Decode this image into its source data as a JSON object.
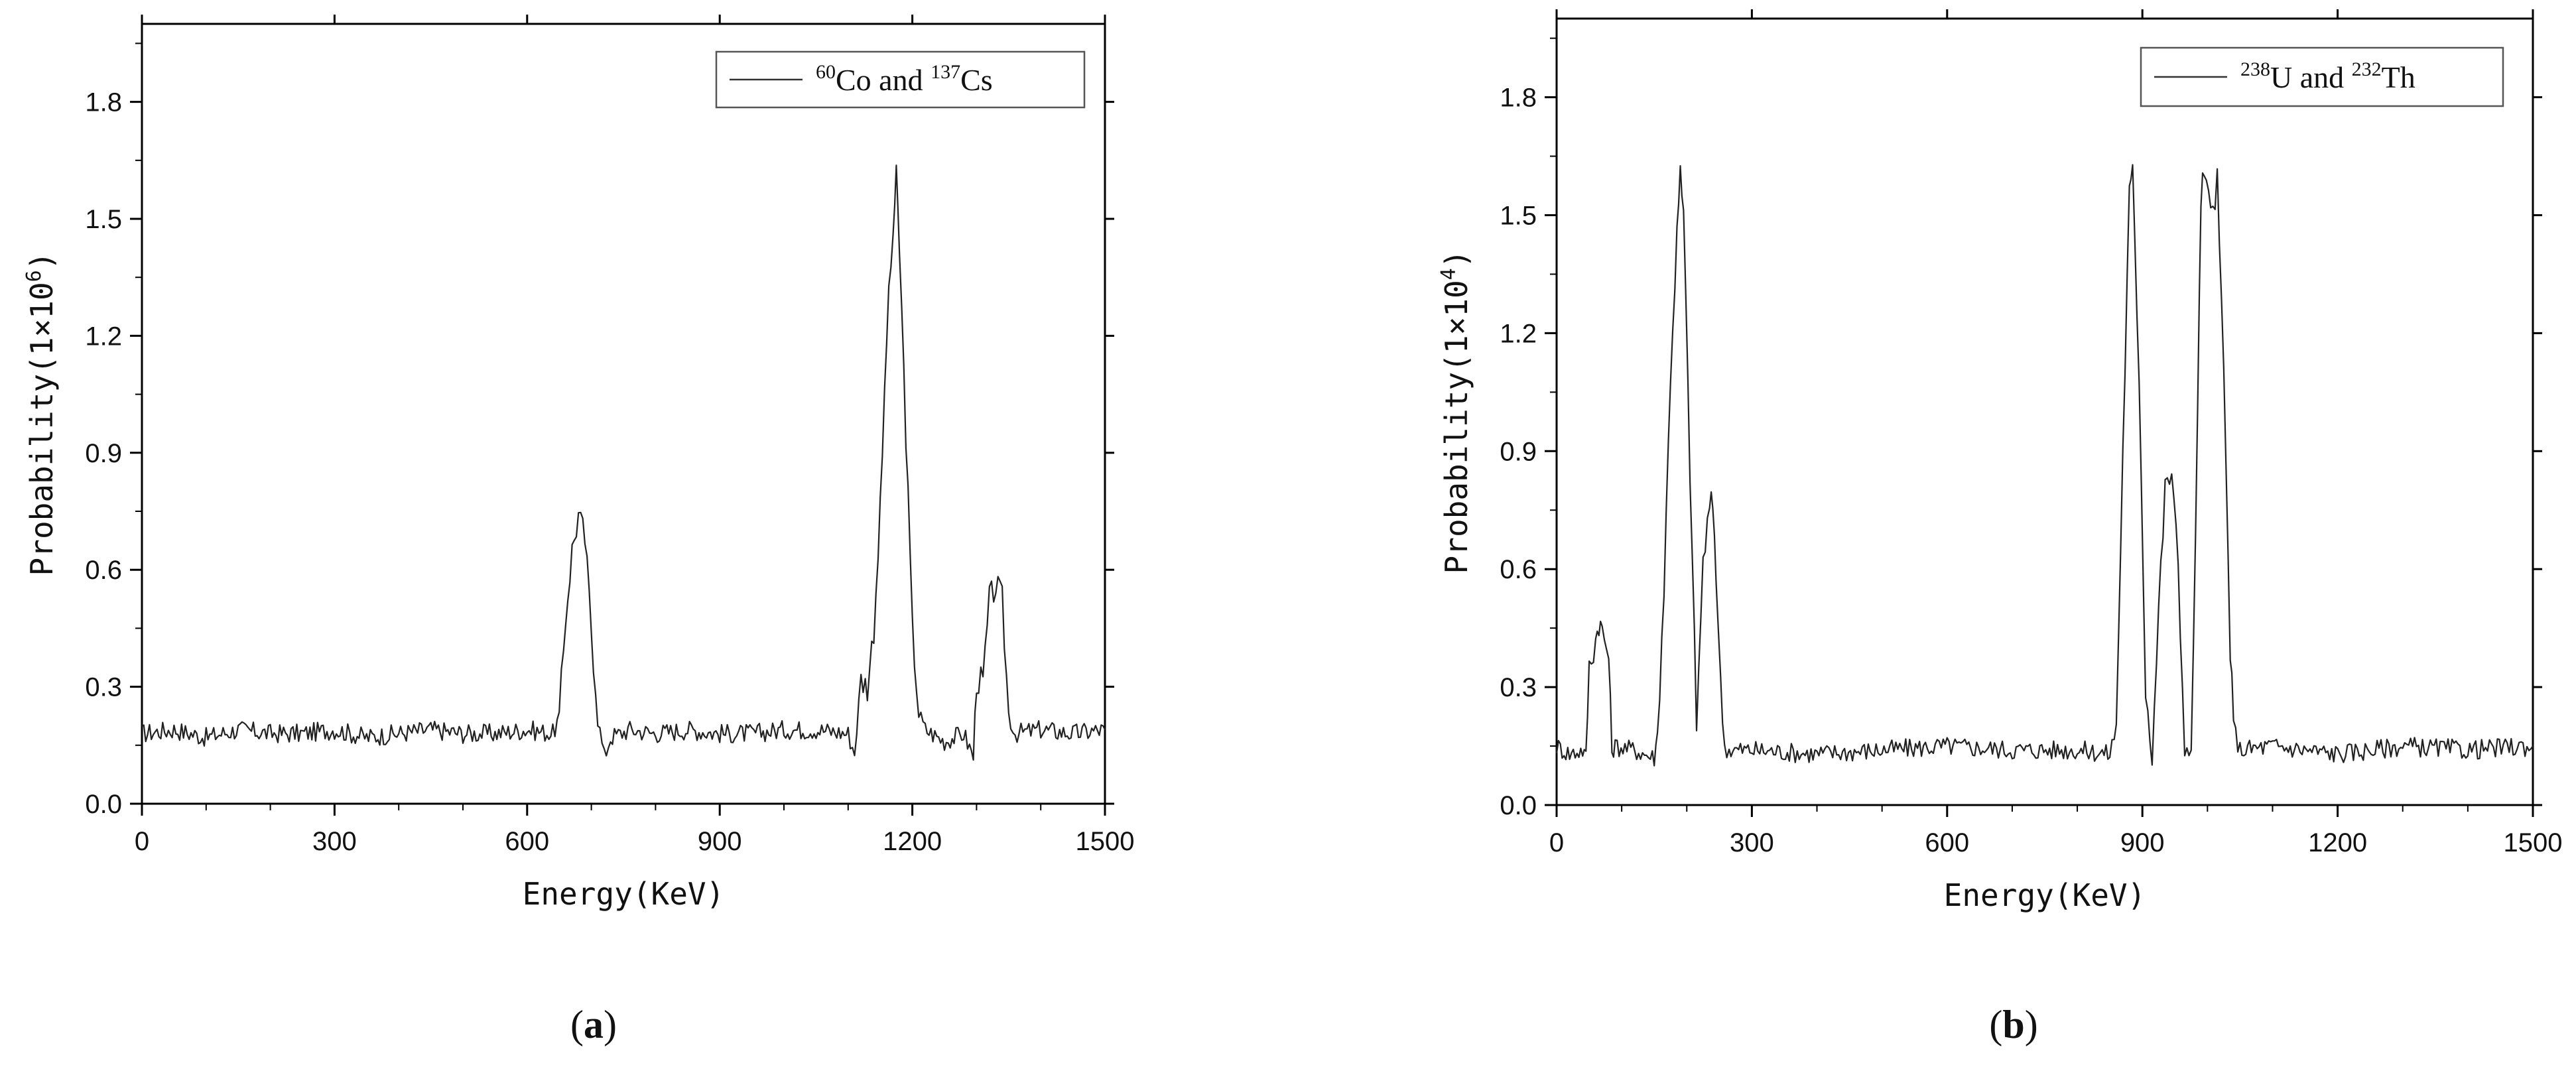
{
  "chart_data": [
    {
      "type": "line",
      "panel_caption": "a",
      "xlabel": "Energy(KeV)",
      "ylabel_prefix": "Probability(1×10",
      "ylabel_exponent": "6",
      "ylabel_suffix": ")",
      "xlim": [
        0,
        1500
      ],
      "ylim": [
        0,
        2.0
      ],
      "xticks": [
        0,
        300,
        600,
        900,
        1200,
        1500
      ],
      "xtick_labels": [
        "0",
        "300",
        "600",
        "900",
        "1200",
        "1500"
      ],
      "yticks": [
        0.0,
        0.3,
        0.6,
        0.9,
        1.2,
        1.5,
        1.8
      ],
      "ytick_labels": [
        "0.0",
        "0.3",
        "0.6",
        "0.9",
        "1.2",
        "1.5",
        "1.8"
      ],
      "legend": {
        "position": "top-right",
        "entries": [
          {
            "sup1": "60",
            "text1": "Co and ",
            "sup2": "137",
            "text2": "Cs"
          }
        ]
      },
      "baseline": 0.18,
      "noise": 0.025,
      "peaks": [
        {
          "center": 680,
          "height": 0.55,
          "width": 18,
          "dip_before": 0.0,
          "edge": 645
        },
        {
          "center": 1175,
          "height": 1.38,
          "width": 22
        },
        {
          "center": 1330,
          "height": 0.37,
          "width": 12
        }
      ],
      "series": [
        {
          "name": "60Co and 137Cs",
          "x": [
            0,
            50,
            100,
            150,
            200,
            250,
            300,
            350,
            400,
            450,
            500,
            550,
            600,
            640,
            650,
            660,
            670,
            680,
            690,
            700,
            710,
            720,
            730,
            760,
            800,
            850,
            900,
            950,
            1000,
            1050,
            1100,
            1110,
            1120,
            1130,
            1140,
            1150,
            1160,
            1170,
            1175,
            1180,
            1190,
            1200,
            1210,
            1220,
            1250,
            1280,
            1295,
            1300,
            1310,
            1320,
            1330,
            1340,
            1350,
            1360,
            1400,
            1450,
            1500
          ],
          "y": [
            0.18,
            0.19,
            0.17,
            0.19,
            0.18,
            0.18,
            0.19,
            0.17,
            0.18,
            0.19,
            0.18,
            0.18,
            0.19,
            0.18,
            0.22,
            0.48,
            0.65,
            0.74,
            0.68,
            0.45,
            0.22,
            0.12,
            0.17,
            0.19,
            0.18,
            0.19,
            0.18,
            0.18,
            0.19,
            0.19,
            0.18,
            0.13,
            0.32,
            0.3,
            0.45,
            0.75,
            1.2,
            1.47,
            1.6,
            1.42,
            0.95,
            0.45,
            0.23,
            0.19,
            0.16,
            0.18,
            0.12,
            0.32,
            0.31,
            0.52,
            0.56,
            0.52,
            0.23,
            0.18,
            0.19,
            0.18,
            0.19
          ]
        }
      ]
    },
    {
      "type": "line",
      "panel_caption": "b",
      "xlabel": "Energy(KeV)",
      "ylabel_prefix": "Probability(1×10",
      "ylabel_exponent": "4",
      "ylabel_suffix": ")",
      "xlim": [
        0,
        1500
      ],
      "ylim": [
        0,
        2.0
      ],
      "xticks": [
        0,
        300,
        600,
        900,
        1200,
        1500
      ],
      "xtick_labels": [
        "0",
        "300",
        "600",
        "900",
        "1200",
        "1500"
      ],
      "yticks": [
        0.0,
        0.3,
        0.6,
        0.9,
        1.2,
        1.5,
        1.8
      ],
      "ytick_labels": [
        "0.0",
        "0.3",
        "0.6",
        "0.9",
        "1.2",
        "1.5",
        "1.8"
      ],
      "legend": {
        "position": "top-right",
        "entries": [
          {
            "sup1": "238",
            "text1": "U and ",
            "sup2": "232",
            "text2": "Th"
          }
        ]
      },
      "series": [
        {
          "name": "238U and 232Th",
          "x": [
            0,
            20,
            40,
            45,
            50,
            60,
            65,
            70,
            80,
            85,
            90,
            120,
            150,
            155,
            165,
            175,
            185,
            190,
            195,
            205,
            215,
            225,
            235,
            240,
            245,
            252,
            258,
            265,
            300,
            400,
            500,
            600,
            700,
            800,
            850,
            860,
            870,
            880,
            885,
            895,
            905,
            915,
            925,
            935,
            945,
            955,
            965,
            975,
            985,
            990,
            995,
            1005,
            1015,
            1025,
            1035,
            1040,
            1050,
            1100,
            1200,
            1300,
            1400,
            1500
          ],
          "y": [
            0.15,
            0.13,
            0.14,
            0.12,
            0.35,
            0.42,
            0.47,
            0.44,
            0.38,
            0.14,
            0.15,
            0.14,
            0.12,
            0.18,
            0.55,
            1.1,
            1.45,
            1.6,
            1.5,
            0.85,
            0.2,
            0.62,
            0.75,
            0.77,
            0.6,
            0.3,
            0.15,
            0.14,
            0.14,
            0.13,
            0.14,
            0.15,
            0.14,
            0.14,
            0.13,
            0.2,
            0.9,
            1.55,
            1.6,
            1.1,
            0.3,
            0.12,
            0.5,
            0.8,
            0.85,
            0.6,
            0.15,
            0.12,
            1.0,
            1.55,
            1.6,
            1.5,
            1.58,
            1.1,
            0.4,
            0.2,
            0.14,
            0.15,
            0.13,
            0.15,
            0.14,
            0.15
          ]
        }
      ]
    }
  ]
}
